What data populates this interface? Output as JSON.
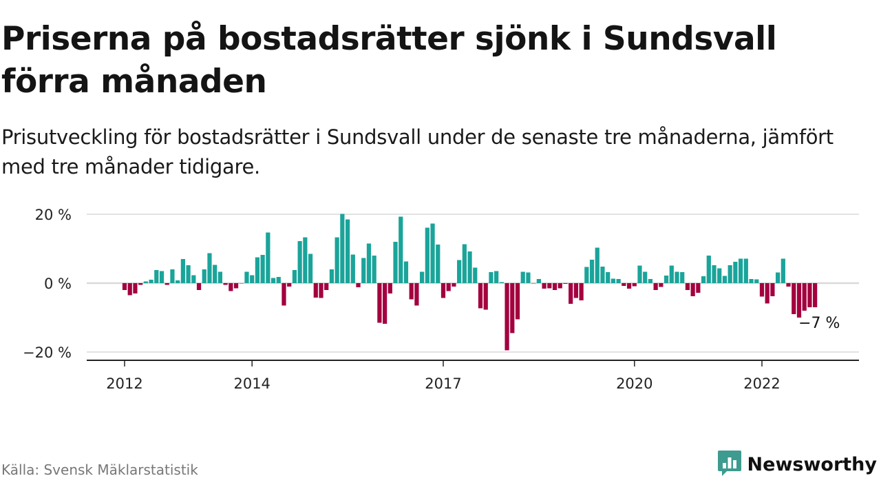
{
  "header": {
    "title": "Priserna på bostadsrätter sjönk i Sundsvall förra månaden",
    "subtitle": "Prisutveckling för bostadsrätter i Sundsvall under de senaste tre månaderna, jämfört med tre månader tidigare."
  },
  "footer": {
    "source": "Källa: Svensk Mäklarstatistik",
    "brand": "Newsworthy",
    "brand_icon": "bar-chart-logo-icon"
  },
  "colors": {
    "positive": "#1aa49a",
    "negative": "#a3003f",
    "brand": "#3d9b8f",
    "grid": "#d9d9d9",
    "axis": "#222222"
  },
  "chart_data": {
    "type": "bar",
    "title": "",
    "xlabel": "",
    "ylabel": "",
    "ylim": [
      -22,
      20
    ],
    "y_ticks": [
      20,
      0,
      -20
    ],
    "y_tick_labels": [
      "20 %",
      "0 %",
      "−20 %"
    ],
    "x_ticks": [
      "2012",
      "2014",
      "2017",
      "2020",
      "2022"
    ],
    "x_tick_positions": [
      2012,
      2014,
      2017,
      2020,
      2022
    ],
    "x_start": 2012.0,
    "x_step": 0.08333,
    "grid": true,
    "legend": "none",
    "last_value_label": "−7 %",
    "values": [
      -2,
      -3.5,
      -3,
      -0.5,
      0.5,
      1,
      3.8,
      3.5,
      -0.5,
      4,
      0.8,
      7,
      5.2,
      2.3,
      -2,
      4,
      8.7,
      5.3,
      3.3,
      -0.5,
      -2.3,
      -1.5,
      0,
      3.3,
      2.3,
      7.5,
      8.2,
      14.7,
      1.5,
      1.8,
      -6.5,
      -1,
      3.8,
      12.2,
      13.3,
      8.5,
      -4.2,
      -4.3,
      -2,
      4,
      13.3,
      20.1,
      18.5,
      8.3,
      -1.2,
      7.3,
      11.5,
      8,
      -11.5,
      -11.8,
      -3,
      12,
      19.3,
      6.3,
      -4.7,
      -6.5,
      3.3,
      16.1,
      17.3,
      11.2,
      -4.3,
      -2.3,
      -1,
      6.7,
      11.3,
      9.2,
      4.5,
      -7.3,
      -7.7,
      3.2,
      3.5,
      0.3,
      -19.5,
      -14.5,
      -10.5,
      3.3,
      3.1,
      0,
      1.2,
      -1.6,
      -1.5,
      -2,
      -1.5,
      -0.2,
      -6,
      -4.3,
      -5,
      4.7,
      6.8,
      10.3,
      4.8,
      3.2,
      1.3,
      1.2,
      -0.8,
      -1.6,
      -0.9,
      5.1,
      3.3,
      1.2,
      -2,
      -1.1,
      2.2,
      5.1,
      3.3,
      3.2,
      -2,
      -3.8,
      -2.8,
      2,
      8,
      5.2,
      4.3,
      2.1,
      5.2,
      6.2,
      7.1,
      7.1,
      1.2,
      1.1,
      -3.9,
      -5.9,
      -3.8,
      3.1,
      7.1,
      -1,
      -9,
      -10,
      -8,
      -7,
      -7
    ]
  }
}
